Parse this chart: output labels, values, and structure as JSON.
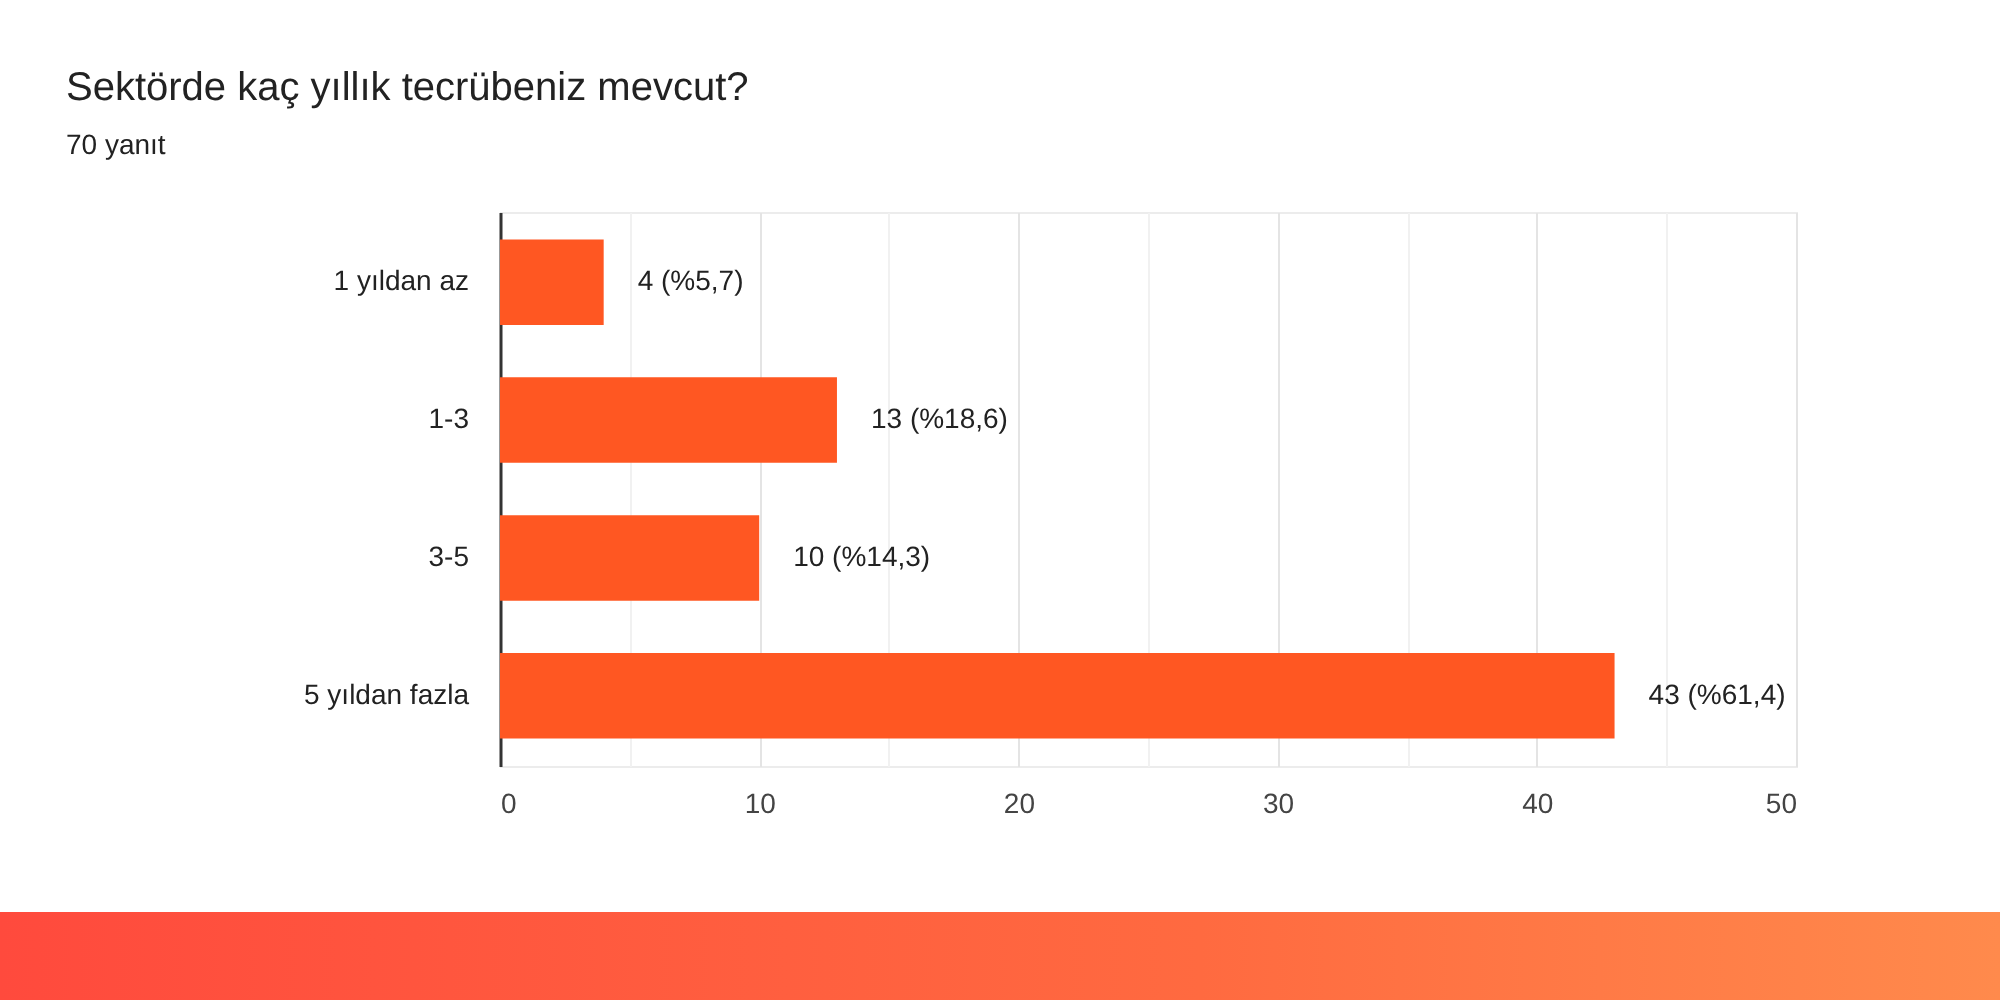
{
  "chart_data": {
    "type": "bar",
    "orientation": "horizontal",
    "title": "Sektörde kaç yıllık tecrübeniz mevcut?",
    "subtitle": "70 yanıt",
    "categories": [
      "1 yıldan az",
      "1-3",
      "3-5",
      "5 yıldan fazla"
    ],
    "values": [
      4,
      13,
      10,
      43
    ],
    "value_labels": [
      "4 (%5,7)",
      "13 (%18,6)",
      "10 (%14,3)",
      "43 (%61,4)"
    ],
    "color": "#ff5722",
    "xlim": [
      0,
      50
    ],
    "xticks": [
      0,
      {
        "value": 5,
        "label": null
      },
      10,
      {
        "value": 15,
        "label": null
      },
      20,
      {
        "value": 25,
        "label": null
      },
      30,
      {
        "value": 35,
        "label": null
      },
      40,
      {
        "value": 45,
        "label": null
      },
      50
    ],
    "grid": "x"
  }
}
